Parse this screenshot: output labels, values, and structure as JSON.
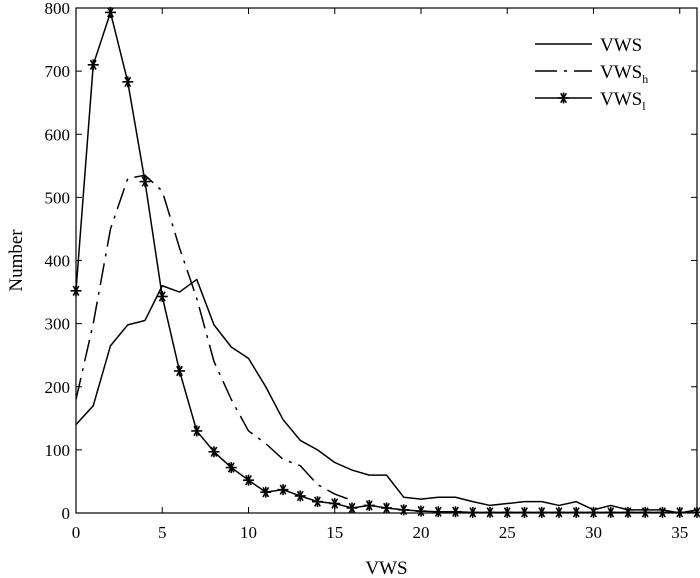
{
  "chart_data": {
    "type": "line",
    "title": "",
    "xlabel": "VWS",
    "ylabel": "Number",
    "xlim": [
      0,
      36
    ],
    "ylim": [
      0,
      800
    ],
    "xticks": [
      0,
      5,
      10,
      15,
      20,
      25,
      30,
      35
    ],
    "yticks": [
      0,
      100,
      200,
      300,
      400,
      500,
      600,
      700,
      800
    ],
    "grid": false,
    "legend_position": "top-right",
    "series": [
      {
        "name": "VWS",
        "legend_base": "VWS",
        "legend_sub": "",
        "style": "solid",
        "x": [
          0,
          1,
          2,
          3,
          4,
          5,
          6,
          7,
          8,
          9,
          10,
          11,
          12,
          13,
          14,
          15,
          16,
          17,
          18,
          19,
          20,
          21,
          22,
          23,
          24,
          25,
          26,
          27,
          28,
          29,
          30,
          31,
          32,
          33,
          34,
          35,
          36
        ],
        "y": [
          140,
          170,
          265,
          298,
          305,
          360,
          350,
          370,
          298,
          263,
          245,
          200,
          148,
          115,
          100,
          80,
          68,
          60,
          60,
          25,
          22,
          25,
          25,
          18,
          12,
          15,
          18,
          18,
          12,
          18,
          5,
          12,
          5,
          5,
          5,
          0,
          5
        ]
      },
      {
        "name": "VWSh",
        "legend_base": "VWS",
        "legend_sub": "h",
        "style": "dashdot",
        "x": [
          0,
          1,
          2,
          3,
          4,
          5,
          6,
          7,
          8,
          9,
          10,
          11,
          12,
          13,
          14,
          15,
          16
        ],
        "y": [
          180,
          300,
          450,
          530,
          535,
          510,
          420,
          340,
          240,
          180,
          130,
          110,
          85,
          75,
          45,
          30,
          20
        ]
      },
      {
        "name": "VWSl",
        "legend_base": "VWS",
        "legend_sub": "l",
        "style": "solid-star",
        "x": [
          0,
          1,
          2,
          3,
          4,
          5,
          6,
          7,
          8,
          9,
          10,
          11,
          12,
          13,
          14,
          15,
          16,
          17,
          18,
          19,
          20,
          21,
          22,
          23,
          24,
          25,
          26,
          27,
          28,
          29,
          30,
          31,
          32,
          33,
          34,
          35,
          36
        ],
        "y": [
          352,
          710,
          793,
          683,
          525,
          343,
          225,
          130,
          97,
          72,
          52,
          33,
          37,
          27,
          18,
          15,
          8,
          12,
          8,
          5,
          3,
          2,
          2,
          1,
          1,
          1,
          1,
          1,
          1,
          1,
          1,
          1,
          1,
          1,
          1,
          1,
          1
        ]
      }
    ]
  }
}
